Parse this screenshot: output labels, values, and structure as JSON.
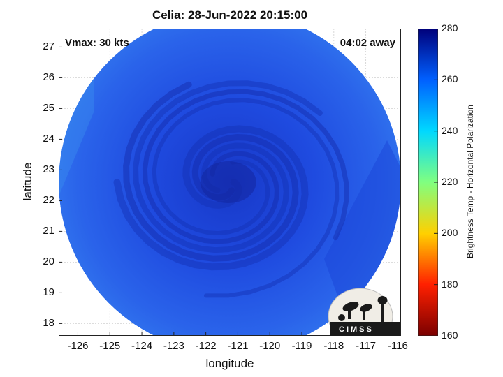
{
  "title": "Celia: 28-Jun-2022 20:15:00",
  "annotations": {
    "vmax": "Vmax: 30 kts",
    "time_away": "04:02 away"
  },
  "logo_text": "CIMSS",
  "map": {
    "xlabel": "longitude",
    "ylabel": "latitude",
    "x_ticks": [
      -126,
      -125,
      -124,
      -123,
      -122,
      -121,
      -120,
      -119,
      -118,
      -117,
      -116
    ],
    "y_ticks": [
      18,
      19,
      20,
      21,
      22,
      23,
      24,
      25,
      26,
      27
    ],
    "xlim": [
      -126.6,
      -115.9
    ],
    "ylim": [
      17.6,
      27.6
    ],
    "center": {
      "lon": -121.3,
      "lat": 22.6
    }
  },
  "colorbar": {
    "label": "Brightness Temp - Horizontal Polarization",
    "ticks": [
      160,
      180,
      200,
      220,
      240,
      260,
      280
    ],
    "range": [
      160,
      280
    ],
    "colors": [
      "#7a0000",
      "#ff2000",
      "#ffd000",
      "#80ff80",
      "#00d8ff",
      "#0060ff",
      "#00007a"
    ]
  }
}
